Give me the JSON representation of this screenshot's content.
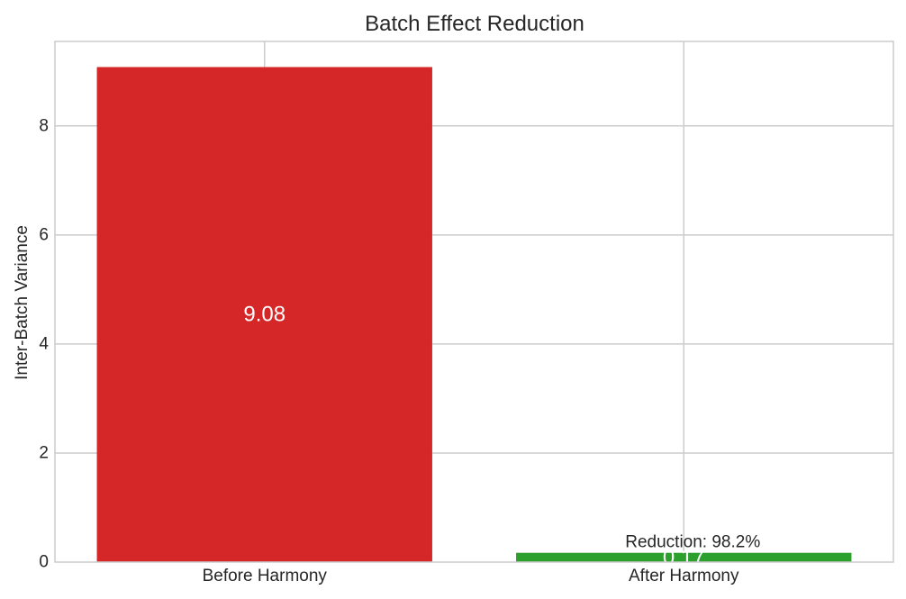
{
  "chart_data": {
    "type": "bar",
    "title": "Batch Effect Reduction",
    "xlabel": "",
    "ylabel": "Inter-Batch Variance",
    "categories": [
      "Before Harmony",
      "After Harmony"
    ],
    "values": [
      9.08,
      0.17
    ],
    "value_labels": [
      "9.08",
      "0.17"
    ],
    "ylim": [
      0,
      9.55
    ],
    "yticks": [
      0,
      2,
      4,
      6,
      8
    ],
    "ytick_labels": [
      "0",
      "2",
      "4",
      "6",
      "8"
    ],
    "grid": true,
    "colors": [
      "#d62728",
      "#2ca02c"
    ],
    "annotations": [
      {
        "text": "Reduction: 98.2%",
        "category": "After Harmony",
        "y": 0.17
      }
    ]
  },
  "colors": {
    "grid": "#cccccc",
    "frame": "#cccccc",
    "text": "#262626",
    "background": "#ffffff"
  }
}
